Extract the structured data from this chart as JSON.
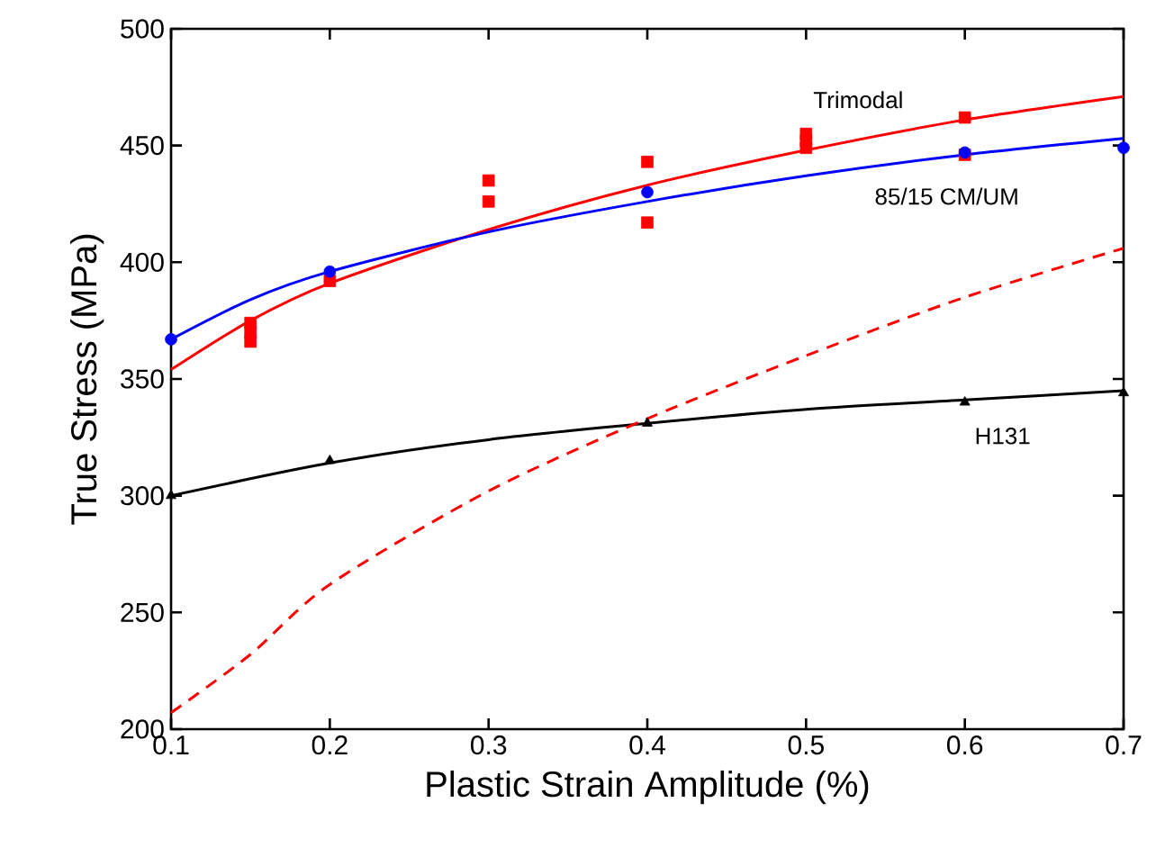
{
  "chart_data": {
    "type": "scatter",
    "xlabel": "Plastic Strain Amplitude (%)",
    "ylabel": "True Stress (MPa)",
    "xlim": [
      0.1,
      0.7
    ],
    "ylim": [
      200,
      500
    ],
    "xticks": [
      0.1,
      0.2,
      0.3,
      0.4,
      0.5,
      0.6,
      0.7
    ],
    "yticks": [
      200,
      250,
      300,
      350,
      400,
      450,
      500
    ],
    "grid": false,
    "series": [
      {
        "marker": "square",
        "color": "#ff0000",
        "x": [
          0.15,
          0.15,
          0.15,
          0.2,
          0.3,
          0.3,
          0.4,
          0.4,
          0.5,
          0.5,
          0.5,
          0.6,
          0.6
        ],
        "values": [
          366,
          370,
          374,
          392,
          426,
          435,
          417,
          443,
          449,
          452,
          455,
          446,
          462
        ]
      },
      {
        "marker": "circle",
        "color": "#0000ff",
        "x": [
          0.1,
          0.2,
          0.4,
          0.6,
          0.7
        ],
        "values": [
          367,
          396,
          430,
          447,
          449
        ]
      },
      {
        "marker": "triangle",
        "color": "#000000",
        "x": [
          0.1,
          0.2,
          0.4,
          0.6,
          0.7
        ],
        "values": [
          300,
          315,
          331,
          340,
          344
        ]
      },
      {
        "type": "line",
        "name": "Trimodal",
        "line_style": "solid",
        "color": "#ff0000",
        "x": [
          0.1,
          0.15,
          0.2,
          0.3,
          0.4,
          0.5,
          0.6,
          0.7
        ],
        "values": [
          354,
          375,
          391,
          414,
          433,
          448,
          461,
          471
        ]
      },
      {
        "type": "line",
        "name": "85/15 CM/UM",
        "line_style": "solid",
        "color": "#0000ff",
        "x": [
          0.1,
          0.15,
          0.2,
          0.3,
          0.4,
          0.5,
          0.6,
          0.7
        ],
        "values": [
          367,
          384,
          396,
          413,
          426,
          437,
          446,
          453
        ]
      },
      {
        "type": "line",
        "name": "H131",
        "line_style": "solid",
        "color": "#000000",
        "x": [
          0.1,
          0.2,
          0.3,
          0.4,
          0.5,
          0.6,
          0.7
        ],
        "values": [
          300,
          314,
          324,
          331,
          337,
          341,
          345
        ]
      },
      {
        "type": "line",
        "line_style": "dashed",
        "color": "#ff0000",
        "x": [
          0.1,
          0.15,
          0.2,
          0.3,
          0.4,
          0.5,
          0.6,
          0.7
        ],
        "values": [
          207,
          232,
          262,
          302,
          333,
          360,
          385,
          406
        ]
      }
    ]
  }
}
